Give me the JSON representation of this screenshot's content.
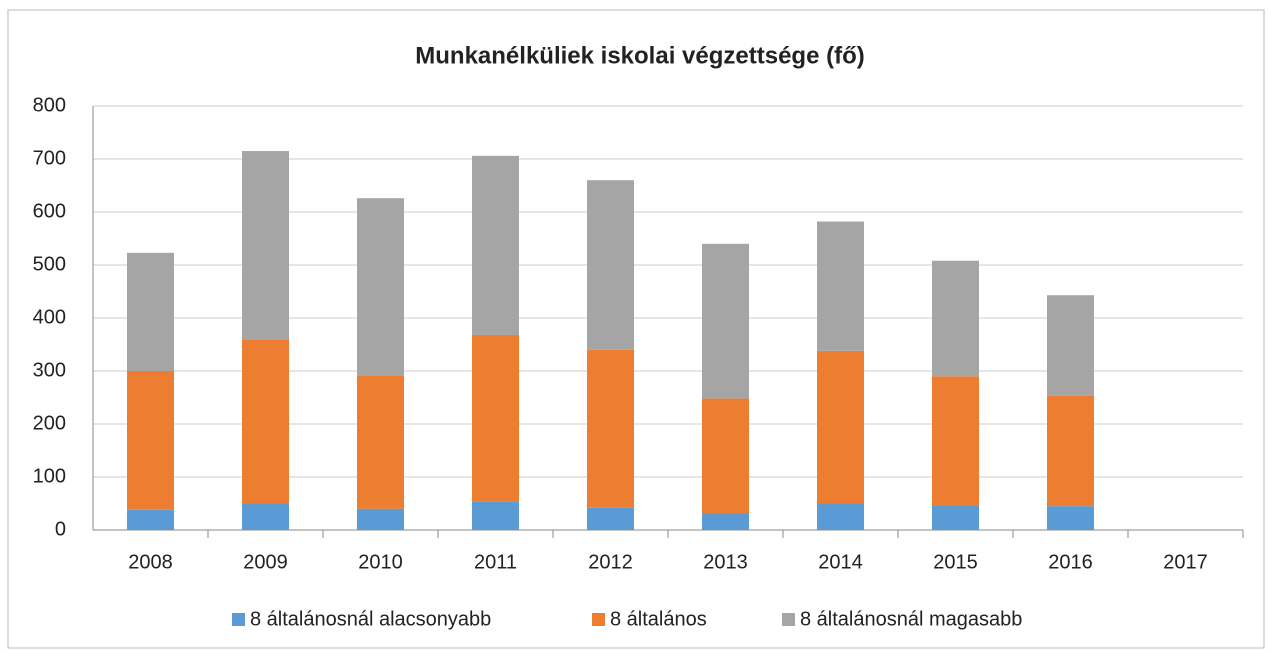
{
  "chart_data": {
    "type": "stacked_bar",
    "title": "Munkanélküliek iskolai végzettsége (fő)",
    "categories": [
      "2008",
      "2009",
      "2010",
      "2011",
      "2012",
      "2013",
      "2014",
      "2015",
      "2016",
      "2017"
    ],
    "series": [
      {
        "name": "8 általánosnál alacsonyabb",
        "color": "#5b9bd5",
        "values": [
          38,
          50,
          40,
          53,
          42,
          32,
          50,
          47,
          45,
          null
        ]
      },
      {
        "name": "8 általános",
        "color": "#ed7d31",
        "values": [
          262,
          310,
          252,
          315,
          298,
          216,
          288,
          243,
          208,
          null
        ]
      },
      {
        "name": "8 általánosnál magasabb",
        "color": "#a5a5a5",
        "values": [
          223,
          355,
          334,
          338,
          320,
          292,
          244,
          218,
          190,
          null
        ]
      }
    ],
    "ylim": [
      0,
      800
    ],
    "yticks": [
      0,
      100,
      200,
      300,
      400,
      500,
      600,
      700,
      800
    ],
    "grid": true,
    "legend": "bottom"
  }
}
